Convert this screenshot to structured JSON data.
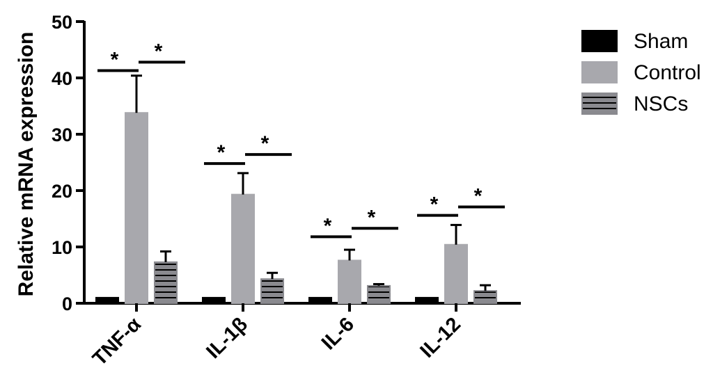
{
  "chart_data": {
    "type": "bar",
    "title": "",
    "xlabel": "",
    "ylabel": "Relative mRNA expression",
    "ylim": [
      0,
      50
    ],
    "yticks": [
      0,
      10,
      20,
      30,
      40,
      50
    ],
    "categories": [
      "TNF-α",
      "IL-1β",
      "IL-6",
      "IL-12"
    ],
    "series": [
      {
        "name": "Sham",
        "values": [
          1,
          1,
          1,
          1
        ],
        "errors": [
          0,
          0,
          0,
          0
        ],
        "color": "#000000",
        "pattern": "solid"
      },
      {
        "name": "Control",
        "values": [
          33.8,
          19.3,
          7.6,
          10.4
        ],
        "errors": [
          6.6,
          3.8,
          1.9,
          3.5
        ],
        "color": "#a8a8ad",
        "pattern": "solid"
      },
      {
        "name": "NSCs",
        "values": [
          7.3,
          4.3,
          3.1,
          2.2
        ],
        "errors": [
          1.9,
          1.1,
          0.3,
          1.0
        ],
        "color": "#8a8a8f",
        "pattern": "horizontal-lines"
      }
    ],
    "significance": [
      {
        "category": "TNF-α",
        "marker": "*",
        "comparison": "Sham vs Control",
        "y": 41.3
      },
      {
        "category": "TNF-α",
        "marker": "*",
        "comparison": "Control vs NSCs",
        "y": 42.8
      },
      {
        "category": "IL-1β",
        "marker": "*",
        "comparison": "Sham vs Control",
        "y": 24.8
      },
      {
        "category": "IL-1β",
        "marker": "*",
        "comparison": "Control vs NSCs",
        "y": 26.4
      },
      {
        "category": "IL-6",
        "marker": "*",
        "comparison": "Sham vs Control",
        "y": 11.8
      },
      {
        "category": "IL-6",
        "marker": "*",
        "comparison": "Control vs NSCs",
        "y": 13.3
      },
      {
        "category": "IL-12",
        "marker": "*",
        "comparison": "Sham vs Control",
        "y": 15.6
      },
      {
        "category": "IL-12",
        "marker": "*",
        "comparison": "Control vs NSCs",
        "y": 17.1
      }
    ],
    "legend_position": "top-right",
    "grid": false
  }
}
